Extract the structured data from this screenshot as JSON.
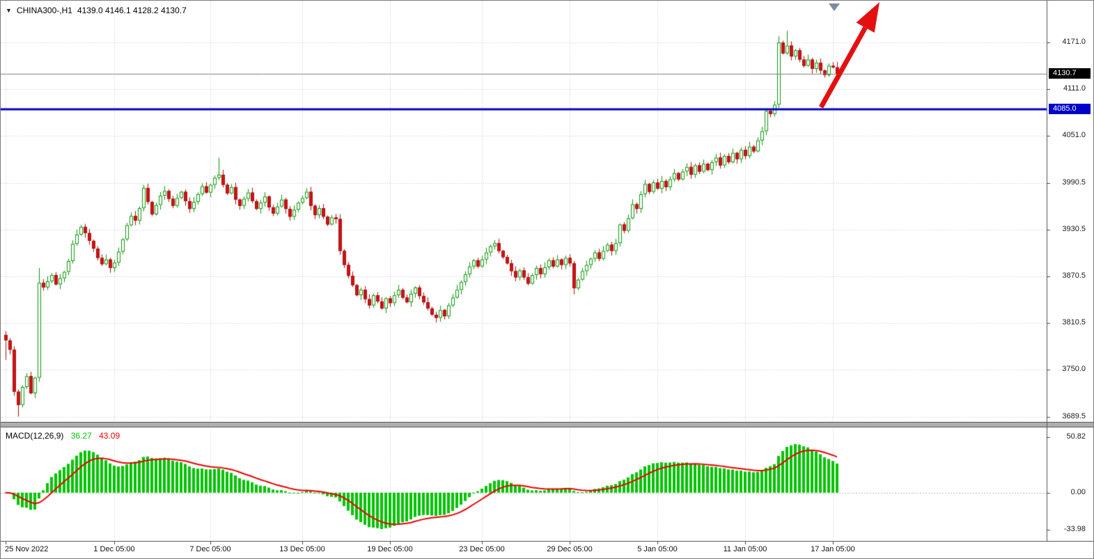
{
  "header": {
    "symbol": "CHINA300-,H1",
    "ohlc": "4139.0 4146.1 4128.2 4130.7"
  },
  "colors": {
    "bull_border": "#0a9a0a",
    "bull_fill": "#ffffff",
    "bear_fill": "#cc1414",
    "bear_border": "#b01010",
    "grid": "#cbcbcb",
    "zero_level": "#b8b8b8",
    "histogram": "#00c400",
    "signal_line": "#ee0000",
    "level_line": "#0000c8",
    "current_price_line": "#808080",
    "arrow": "#e41010",
    "axis_text": "#1b1b1b"
  },
  "chart_data": {
    "type": "candlestick",
    "symbol": "CHINA300-",
    "timeframe": "H1",
    "current_bar": {
      "open": 4139.0,
      "high": 4146.1,
      "low": 4128.2,
      "close": 4130.7
    },
    "closes": [
      3788,
      3776,
      3722,
      3705,
      3728,
      3742,
      3720,
      3740,
      3862,
      3856,
      3864,
      3872,
      3860,
      3868,
      3876,
      3890,
      3912,
      3924,
      3934,
      3926,
      3916,
      3906,
      3894,
      3886,
      3892,
      3881,
      3888,
      3902,
      3918,
      3936,
      3948,
      3942,
      3958,
      3984,
      3966,
      3950,
      3962,
      3974,
      3980,
      3970,
      3961,
      3971,
      3979,
      3967,
      3957,
      3966,
      3976,
      3986,
      3978,
      3988,
      3997,
      4001,
      3988,
      3977,
      3985,
      3969,
      3961,
      3970,
      3978,
      3967,
      3957,
      3965,
      3973,
      3959,
      3951,
      3960,
      3969,
      3957,
      3947,
      3956,
      3965,
      3971,
      3979,
      3961,
      3949,
      3958,
      3947,
      3937,
      3946,
      3944,
      3903,
      3885,
      3871,
      3859,
      3846,
      3853,
      3841,
      3833,
      3846,
      3838,
      3829,
      3842,
      3836,
      3846,
      3853,
      3843,
      3837,
      3848,
      3856,
      3845,
      3837,
      3829,
      3821,
      3817,
      3827,
      3819,
      3833,
      3843,
      3853,
      3863,
      3873,
      3883,
      3891,
      3883,
      3892,
      3901,
      3909,
      3913,
      3903,
      3895,
      3887,
      3877,
      3869,
      3878,
      3869,
      3861,
      3872,
      3881,
      3873,
      3882,
      3891,
      3883,
      3892,
      3885,
      3894,
      3887,
      3855,
      3866,
      3877,
      3885,
      3893,
      3901,
      3893,
      3903,
      3911,
      3903,
      3913,
      3937,
      3929,
      3945,
      3963,
      3957,
      3976,
      3989,
      3979,
      3991,
      3983,
      3993,
      3985,
      3995,
      4003,
      3995,
      4005,
      4011,
      4001,
      4013,
      4005,
      4015,
      4007,
      4017,
      4023,
      4013,
      4025,
      4017,
      4029,
      4021,
      4033,
      4025,
      4037,
      4031,
      4045,
      4057,
      4083,
      4079,
      4091,
      4171,
      4157,
      4167,
      4153,
      4161,
      4149,
      4141,
      4149,
      4137,
      4145,
      4135,
      4129,
      4141,
      4139,
      4130.7
    ],
    "candle_overrides": {
      "0": [
        3795,
        3800,
        3763,
        3788
      ],
      "3": [
        3722,
        3725,
        3690,
        3705
      ],
      "8": [
        3740,
        3881,
        3735,
        3862
      ],
      "51": [
        3997,
        4023,
        3994,
        4001
      ],
      "136": [
        3887,
        3890,
        3847,
        3855
      ],
      "185": [
        4091,
        4179,
        4087,
        4171
      ],
      "187": [
        4157,
        4186,
        4155,
        4167
      ],
      "199": [
        4139.0,
        4146.1,
        4128.2,
        4130.7
      ]
    },
    "x_ticks": [
      {
        "index": 0,
        "label": "25 Nov 2022"
      },
      {
        "index": 26,
        "label": "1 Dec 05:00"
      },
      {
        "index": 49,
        "label": "7 Dec 05:00"
      },
      {
        "index": 71,
        "label": "13 Dec 05:00"
      },
      {
        "index": 92,
        "label": "19 Dec 05:00"
      },
      {
        "index": 114,
        "label": "23 Dec 05:00"
      },
      {
        "index": 135,
        "label": "29 Dec 05:00"
      },
      {
        "index": 156,
        "label": "5 Jan 05:00"
      },
      {
        "index": 177,
        "label": "11 Jan 05:00"
      },
      {
        "index": 198,
        "label": "17 Jan 05:00"
      }
    ],
    "y_axis": {
      "labels": [
        {
          "value": 4171.0,
          "text": "4171.0"
        },
        {
          "value": 4111.0,
          "text": "4111.0"
        },
        {
          "value": 4051.0,
          "text": "4051.0"
        },
        {
          "value": 3990.5,
          "text": "3990.5"
        },
        {
          "value": 3930.5,
          "text": "3930.5"
        },
        {
          "value": 3870.5,
          "text": "3870.5"
        },
        {
          "value": 3810.5,
          "text": "3810.5"
        },
        {
          "value": 3750.0,
          "text": "3750.0"
        },
        {
          "value": 3689.5,
          "text": "3689.5"
        }
      ],
      "current_price": {
        "value": 4130.7,
        "text": "4130.7"
      },
      "horizontal_level": {
        "value": 4085.0,
        "text": "4085.0"
      }
    },
    "indicator": {
      "name": "MACD",
      "params": [
        12,
        26,
        9
      ],
      "label": "MACD(12,26,9)",
      "values_text": {
        "macd": "36.27",
        "signal": "43.09"
      },
      "axis_labels": [
        {
          "value": 50.82,
          "text": "50.82"
        },
        {
          "value": 0,
          "text": "0.00"
        },
        {
          "value": -33.98,
          "text": "-33.98"
        }
      ]
    },
    "annotations": {
      "trend_arrow": {
        "direction": "up",
        "color": "#e41010"
      },
      "top_marker": {
        "shape": "triangle-down",
        "color": "#7b8ba2"
      }
    }
  }
}
